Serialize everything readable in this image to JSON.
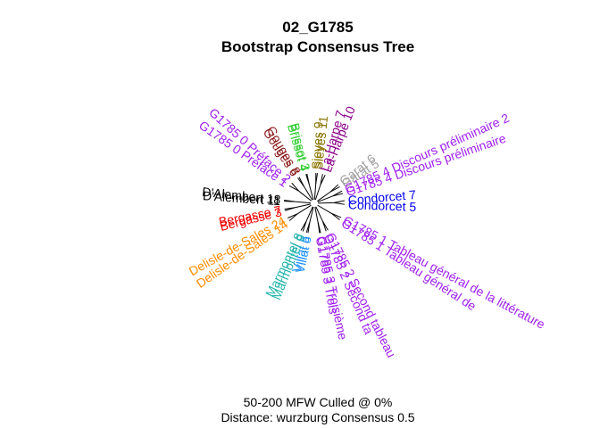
{
  "title": {
    "line1": "02_G1785",
    "line2": "Bootstrap Consensus Tree"
  },
  "caption": {
    "line1": "50-200 MFW  Culled @ 0%",
    "line2": "Distance: wurzburg Consensus 0.5"
  },
  "leaves": [
    {
      "label": "G1785 0 Préface 2",
      "color": "#a020f0"
    },
    {
      "label": "G1785 0 Préface 1",
      "color": "#a020f0"
    },
    {
      "label": "Gouges 8",
      "color": "#8b1a1a"
    },
    {
      "label": "Gouges 6",
      "color": "#8b1a1a"
    },
    {
      "label": "Brissot 4",
      "color": "#32cd32"
    },
    {
      "label": "Brissot 3",
      "color": "#32cd32"
    },
    {
      "label": "Sieyes 9",
      "color": "#8b7500"
    },
    {
      "label": "Sieyes 11",
      "color": "#8b7500"
    },
    {
      "label": "La-Harpe 7",
      "color": "#8b008b"
    },
    {
      "label": "La-Harpe 10",
      "color": "#8b008b"
    },
    {
      "label": "Garat 6",
      "color": "#a0a0a0"
    },
    {
      "label": "Garat 5",
      "color": "#a0a0a0"
    },
    {
      "label": "G1785 4 Discours préliminaire 2",
      "color": "#a020f0"
    },
    {
      "label": "G1785 4 Discours préliminaire",
      "color": "#a020f0"
    },
    {
      "label": "Condorcet 7",
      "color": "#0000ee"
    },
    {
      "label": "Condorcet 5",
      "color": "#0000ee"
    },
    {
      "label": "G1785 1 Tableau général de la littérature",
      "color": "#a020f0"
    },
    {
      "label": "G1785 1 Tableau général de",
      "color": "#a020f0"
    },
    {
      "label": "G1785 2 Second tableau",
      "color": "#a020f0"
    },
    {
      "label": "G1785 2 Second ta",
      "color": "#a020f0"
    },
    {
      "label": "G1785 3 Troisième",
      "color": "#a020f0"
    },
    {
      "label": "G1785 3 Trois",
      "color": "#a020f0"
    },
    {
      "label": "Villat 6",
      "color": "#1e90ff"
    },
    {
      "label": "Villat 5",
      "color": "#1e90ff"
    },
    {
      "label": "Marmontel 9",
      "color": "#20b2aa"
    },
    {
      "label": "Marmontel 8",
      "color": "#20b2aa"
    },
    {
      "label": "Delisle-de-Sales 14",
      "color": "#ff8c00"
    },
    {
      "label": "Delisle-de-Sales 24",
      "color": "#ff8c00"
    },
    {
      "label": "Bergasse 3",
      "color": "#ee0000"
    },
    {
      "label": "Bergasse 7",
      "color": "#ee0000"
    },
    {
      "label": "D'Alembert 11",
      "color": "#000000"
    },
    {
      "label": "D'Alembert 18",
      "color": "#000000"
    }
  ]
}
